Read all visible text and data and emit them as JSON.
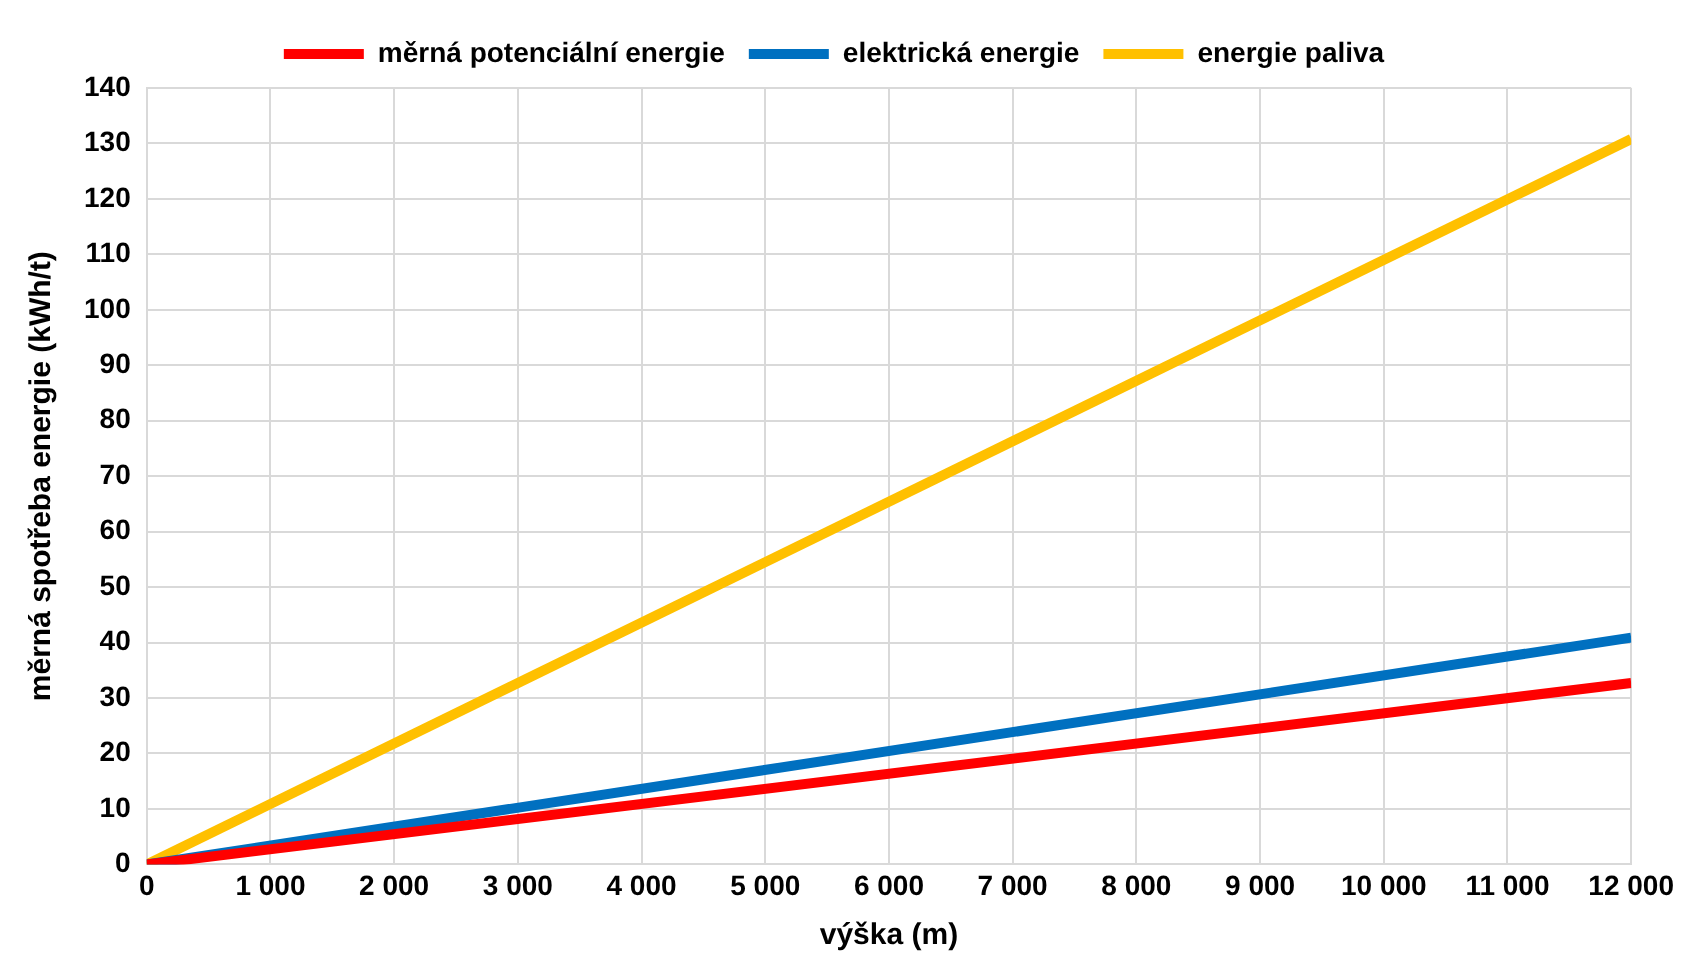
{
  "chart_data": {
    "type": "line",
    "xlabel": "výška (m)",
    "ylabel": "měrná spotřeba energie (kWh/t)",
    "x": [
      0,
      12000
    ],
    "series": [
      {
        "name": "měrná potenciální energie",
        "color": "#ff0000",
        "values": [
          0,
          32.7
        ]
      },
      {
        "name": "elektrická energie",
        "color": "#0070c0",
        "values": [
          0,
          40.9
        ]
      },
      {
        "name": "energie paliva",
        "color": "#ffc000",
        "values": [
          0,
          130.8
        ]
      }
    ],
    "xlim": [
      0,
      12000
    ],
    "xticks": [
      0,
      {
        "value": 1000,
        "label": "1 000"
      },
      {
        "value": 2000,
        "label": "2 000"
      },
      {
        "value": 3000,
        "label": "3 000"
      },
      {
        "value": 4000,
        "label": "4 000"
      },
      {
        "value": 5000,
        "label": "5 000"
      },
      {
        "value": 6000,
        "label": "6 000"
      },
      {
        "value": 7000,
        "label": "7 000"
      },
      {
        "value": 8000,
        "label": "8 000"
      },
      {
        "value": 9000,
        "label": "9 000"
      },
      {
        "value": 10000,
        "label": "10 000"
      },
      {
        "value": 11000,
        "label": "11 000"
      },
      {
        "value": 12000,
        "label": "12 000"
      }
    ],
    "ylim": [
      0,
      140
    ],
    "yticks": [
      0,
      10,
      20,
      30,
      40,
      50,
      60,
      70,
      80,
      90,
      100,
      110,
      120,
      130,
      140
    ],
    "grid": true,
    "legend": "top",
    "marker": "none",
    "line_style": "solid"
  }
}
